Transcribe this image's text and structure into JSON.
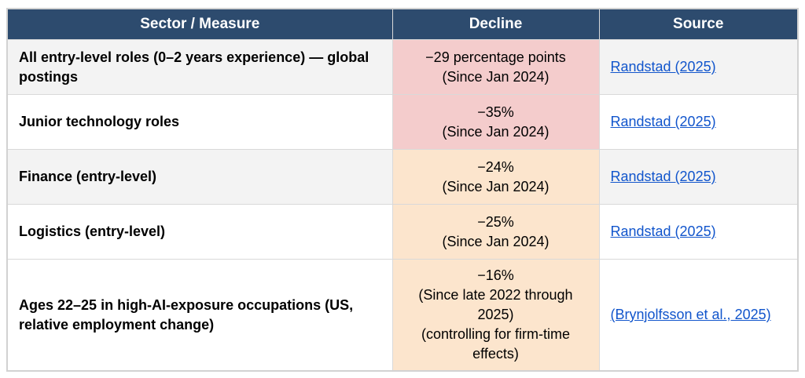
{
  "colors": {
    "header_bg": "#2d4b6e",
    "header_text": "#ffffff",
    "row_gray": "#f3f3f3",
    "row_white": "#ffffff",
    "decline_red": "#f4cccc",
    "decline_orange": "#fce5cd",
    "link_blue": "#1155cc",
    "border": "#d9d9d9"
  },
  "table": {
    "headers": [
      {
        "label": "Sector / Measure"
      },
      {
        "label": "Decline"
      },
      {
        "label": "Source"
      }
    ],
    "rows": [
      {
        "sector": "All entry-level roles (0–2 years experience) — global postings",
        "decline_lines": [
          "−29 percentage points",
          "(Since Jan 2024)"
        ],
        "decline_bg": "#f4cccc",
        "row_bg": "#f3f3f3",
        "source": {
          "label": "Randstad (2025)"
        }
      },
      {
        "sector": "Junior technology roles",
        "decline_lines": [
          "−35%",
          "(Since Jan 2024)"
        ],
        "decline_bg": "#f4cccc",
        "row_bg": "#ffffff",
        "source": {
          "label": "Randstad (2025)"
        }
      },
      {
        "sector": "Finance (entry-level)",
        "decline_lines": [
          "−24%",
          "(Since Jan 2024)"
        ],
        "decline_bg": "#fce5cd",
        "row_bg": "#f3f3f3",
        "source": {
          "label": "Randstad (2025)"
        }
      },
      {
        "sector": "Logistics (entry-level)",
        "decline_lines": [
          "−25%",
          "(Since Jan 2024)"
        ],
        "decline_bg": "#fce5cd",
        "row_bg": "#ffffff",
        "source": {
          "label": "Randstad (2025)"
        }
      },
      {
        "sector": "Ages 22–25 in high-AI-exposure occupations (US, relative employment change)",
        "decline_lines": [
          "−16%",
          "(Since late 2022 through 2025)",
          "(controlling for firm-time effects)"
        ],
        "decline_bg": "#fce5cd",
        "row_bg": "#ffffff",
        "source": {
          "label": "(Brynjolfsson et al., 2025)"
        }
      }
    ]
  }
}
